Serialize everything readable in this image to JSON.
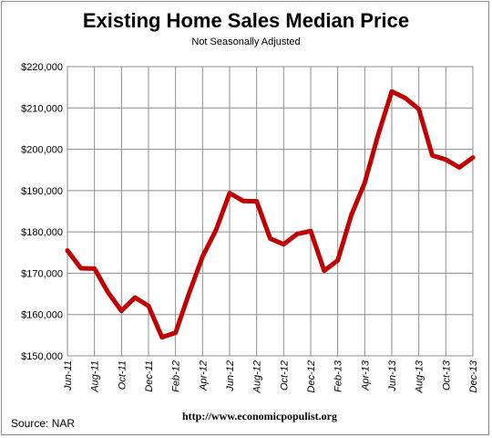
{
  "title": "Existing Home Sales Median Price",
  "subtitle": "Not Seasonally Adjusted",
  "source": "Source:  NAR",
  "url": "http://www.economicpopulist.org",
  "chart_data": {
    "type": "line",
    "title": "Existing Home Sales Median Price",
    "subtitle": "Not Seasonally Adjusted",
    "xlabel": "",
    "ylabel": "",
    "ylim": [
      150000,
      220000
    ],
    "yticks": [
      "$150,000",
      "$160,000",
      "$170,000",
      "$180,000",
      "$190,000",
      "$200,000",
      "$210,000",
      "$220,000"
    ],
    "xtick_labels": [
      "Jun-11",
      "Aug-11",
      "Oct-11",
      "Dec-11",
      "Feb-12",
      "Apr-12",
      "Jun-12",
      "Aug-12",
      "Oct-12",
      "Dec-12",
      "Feb-13",
      "Apr-13",
      "Jun-13",
      "Aug-13",
      "Oct-13",
      "Dec-13"
    ],
    "categories": [
      "Jun-11",
      "Jul-11",
      "Aug-11",
      "Sep-11",
      "Oct-11",
      "Nov-11",
      "Dec-11",
      "Jan-12",
      "Feb-12",
      "Mar-12",
      "Apr-12",
      "May-12",
      "Jun-12",
      "Jul-12",
      "Aug-12",
      "Sep-12",
      "Oct-12",
      "Nov-12",
      "Dec-12",
      "Jan-13",
      "Feb-13",
      "Mar-13",
      "Apr-13",
      "May-13",
      "Jun-13",
      "Jul-13",
      "Aug-13",
      "Sep-13",
      "Oct-13",
      "Nov-13",
      "Dec-13"
    ],
    "grid": true,
    "legend": "none",
    "line_color": "#c00000",
    "series": [
      {
        "values": [
          175500,
          171200,
          171100,
          165400,
          160900,
          164100,
          162100,
          154500,
          155600,
          165100,
          174000,
          180500,
          189400,
          187500,
          187400,
          178400,
          177000,
          179500,
          180200,
          170600,
          173100,
          184000,
          191900,
          203600,
          214000,
          212400,
          209700,
          198500,
          197500,
          195600,
          198000
        ]
      }
    ]
  }
}
